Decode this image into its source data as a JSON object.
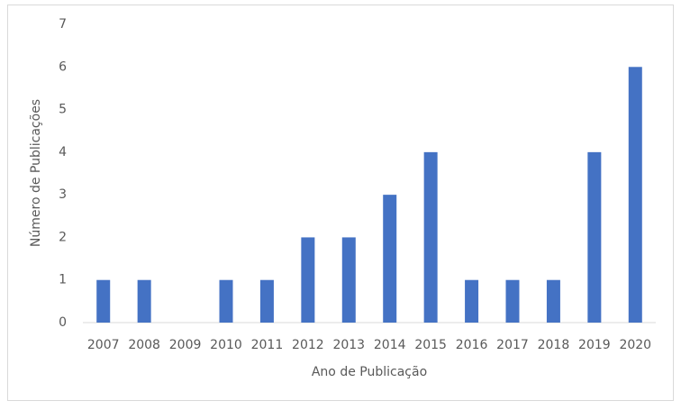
{
  "chart_data": {
    "type": "bar",
    "x_label": "Ano de Publicação",
    "y_label": "Número de Publicações",
    "categories": [
      "2007",
      "2008",
      "2009",
      "2010",
      "2011",
      "2012",
      "2013",
      "2014",
      "2015",
      "2016",
      "2017",
      "2018",
      "2019",
      "2020"
    ],
    "values": [
      1,
      1,
      0,
      1,
      1,
      2,
      2,
      3,
      4,
      1,
      1,
      1,
      4,
      6
    ],
    "color": "#4472c4",
    "ylim": [
      0,
      7
    ],
    "yticks": [
      0,
      1,
      2,
      3,
      4,
      5,
      6,
      7
    ],
    "grid": false
  }
}
